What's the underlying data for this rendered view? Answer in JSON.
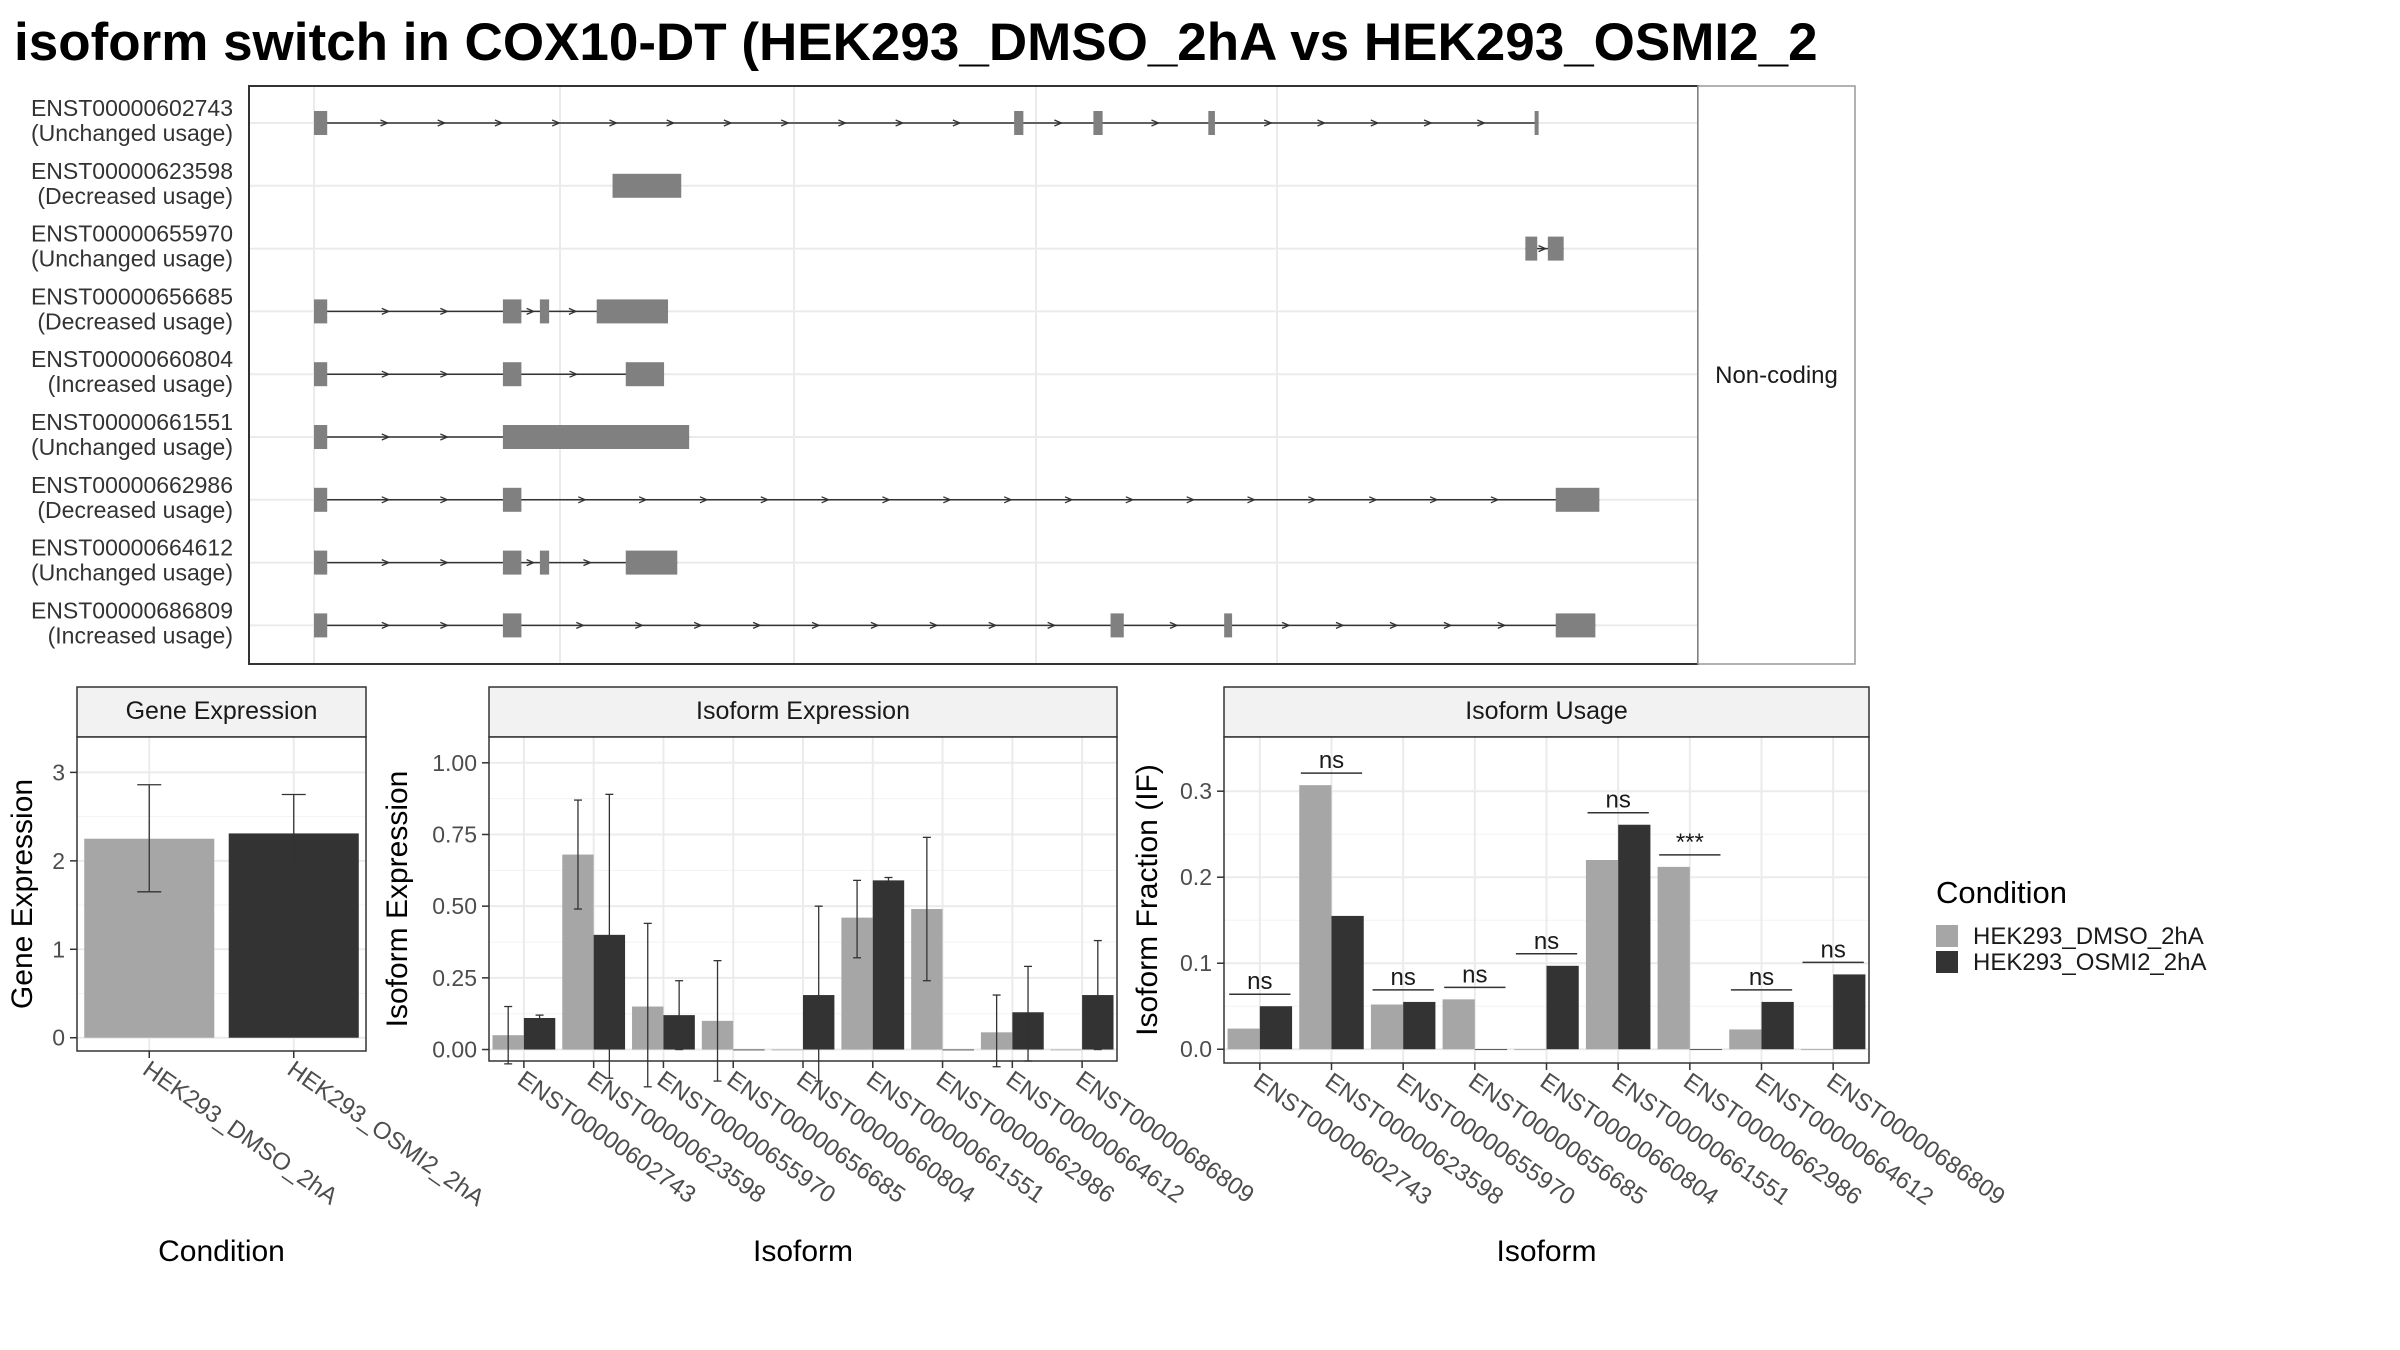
{
  "title": "isoform switch in COX10-DT (HEK293_DMSO_2hA vs HEK293_OSMI2_2",
  "colors": {
    "dmso": "#a6a6a6",
    "osmi2": "#333333",
    "exon": "#808080",
    "line": "#333333",
    "grid": "#ebebeb",
    "strip": "#f2f2f2"
  },
  "chart_data": [
    {
      "type": "gene_structure",
      "strip_label": "Non-coding",
      "isoforms": [
        {
          "id": "ENST00000602743",
          "usage": "(Unchanged usage)",
          "exons": [
            [
              0.0,
              0.01
            ],
            [
              0.53,
              0.537
            ],
            [
              0.59,
              0.597
            ],
            [
              0.677,
              0.682
            ],
            [
              0.924,
              0.927
            ]
          ]
        },
        {
          "id": "ENST00000623598",
          "usage": "(Decreased usage)",
          "exons": [
            [
              0.226,
              0.278
            ]
          ]
        },
        {
          "id": "ENST00000655970",
          "usage": "(Unchanged usage)",
          "exons": [
            [
              0.917,
              0.926
            ],
            [
              0.934,
              0.946
            ]
          ]
        },
        {
          "id": "ENST00000656685",
          "usage": "(Decreased usage)",
          "exons": [
            [
              0.0,
              0.01
            ],
            [
              0.143,
              0.157
            ],
            [
              0.171,
              0.178
            ],
            [
              0.214,
              0.268
            ]
          ]
        },
        {
          "id": "ENST00000660804",
          "usage": "(Increased usage)",
          "exons": [
            [
              0.0,
              0.01
            ],
            [
              0.143,
              0.157
            ],
            [
              0.236,
              0.265
            ]
          ]
        },
        {
          "id": "ENST00000661551",
          "usage": "(Unchanged usage)",
          "exons": [
            [
              0.0,
              0.01
            ],
            [
              0.143,
              0.284
            ]
          ]
        },
        {
          "id": "ENST00000662986",
          "usage": "(Decreased usage)",
          "exons": [
            [
              0.0,
              0.01
            ],
            [
              0.143,
              0.157
            ],
            [
              0.94,
              0.973
            ]
          ]
        },
        {
          "id": "ENST00000664612",
          "usage": "(Unchanged usage)",
          "exons": [
            [
              0.0,
              0.01
            ],
            [
              0.143,
              0.157
            ],
            [
              0.171,
              0.178
            ],
            [
              0.236,
              0.275
            ]
          ]
        },
        {
          "id": "ENST00000686809",
          "usage": "(Increased usage)",
          "exons": [
            [
              0.0,
              0.01
            ],
            [
              0.143,
              0.157
            ],
            [
              0.603,
              0.613
            ],
            [
              0.689,
              0.695
            ],
            [
              0.94,
              0.97
            ]
          ]
        }
      ]
    },
    {
      "type": "bar",
      "strip_label": "Gene Expression",
      "xlabel": "Condition",
      "ylabel": "Gene Expression",
      "ylim": [
        -0.15,
        3.4
      ],
      "yticks": [
        0,
        1,
        2,
        3
      ],
      "ytick_labels": [
        "0",
        "1",
        "2",
        "3"
      ],
      "categories": [
        "HEK293_DMSO_2hA",
        "HEK293_OSMI2_2hA"
      ],
      "values": [
        2.25,
        2.31
      ],
      "error_low": [
        1.65,
        1.87
      ],
      "error_high": [
        2.86,
        2.75
      ]
    },
    {
      "type": "bar",
      "strip_label": "Isoform Expression",
      "xlabel": "Isoform",
      "ylabel": "Isoform Expression",
      "ylim": [
        -0.04,
        1.09
      ],
      "yticks": [
        0,
        0.25,
        0.5,
        0.75,
        1.0
      ],
      "ytick_labels": [
        "0.00",
        "0.25",
        "0.50",
        "0.75",
        "1.00"
      ],
      "categories": [
        "ENST00000602743",
        "ENST00000623598",
        "ENST00000655970",
        "ENST00000656685",
        "ENST00000660804",
        "ENST00000661551",
        "ENST00000662986",
        "ENST00000664612",
        "ENST00000686809"
      ],
      "series": [
        {
          "name": "HEK293_DMSO_2hA",
          "values": [
            0.05,
            0.68,
            0.15,
            0.1,
            0.0,
            0.46,
            0.49,
            0.06,
            0.0
          ],
          "error_low": [
            -0.05,
            0.49,
            -0.13,
            -0.11,
            0.0,
            0.32,
            0.24,
            -0.06,
            0.0
          ],
          "error_high": [
            0.15,
            0.87,
            0.44,
            0.31,
            0.0,
            0.59,
            0.74,
            0.19,
            0.0
          ]
        },
        {
          "name": "HEK293_OSMI2_2hA",
          "values": [
            0.11,
            0.4,
            0.12,
            0.0,
            0.19,
            0.59,
            0.0,
            0.13,
            0.19
          ],
          "error_low": [
            0.1,
            -0.1,
            0.0,
            0.0,
            -0.11,
            0.57,
            0.0,
            -0.04,
            0.0
          ],
          "error_high": [
            0.12,
            0.89,
            0.24,
            0.0,
            0.5,
            0.6,
            0.0,
            0.29,
            0.38
          ]
        }
      ]
    },
    {
      "type": "bar",
      "strip_label": "Isoform Usage",
      "xlabel": "Isoform",
      "ylabel": "Isoform Fraction (IF)",
      "ylim": [
        -0.016,
        0.363
      ],
      "yticks": [
        0,
        0.1,
        0.2,
        0.3
      ],
      "ytick_labels": [
        "0.0",
        "0.1",
        "0.2",
        "0.3"
      ],
      "categories": [
        "ENST00000602743",
        "ENST00000623598",
        "ENST00000655970",
        "ENST00000656685",
        "ENST00000660804",
        "ENST00000661551",
        "ENST00000662986",
        "ENST00000664612",
        "ENST00000686809"
      ],
      "series": [
        {
          "name": "HEK293_DMSO_2hA",
          "values": [
            0.024,
            0.307,
            0.052,
            0.058,
            0.0,
            0.22,
            0.212,
            0.023,
            0.0
          ]
        },
        {
          "name": "HEK293_OSMI2_2hA",
          "values": [
            0.05,
            0.155,
            0.055,
            0.0,
            0.097,
            0.261,
            0.0,
            0.055,
            0.087
          ]
        }
      ],
      "annotations": [
        "ns",
        "ns",
        "ns",
        "ns",
        "ns",
        "ns",
        "***",
        "ns",
        "ns"
      ]
    }
  ],
  "legend": {
    "title": "Condition",
    "placement": "right",
    "items": [
      {
        "label": "HEK293_DMSO_2hA",
        "color": "#a6a6a6"
      },
      {
        "label": "HEK293_OSMI2_2hA",
        "color": "#333333"
      }
    ]
  }
}
